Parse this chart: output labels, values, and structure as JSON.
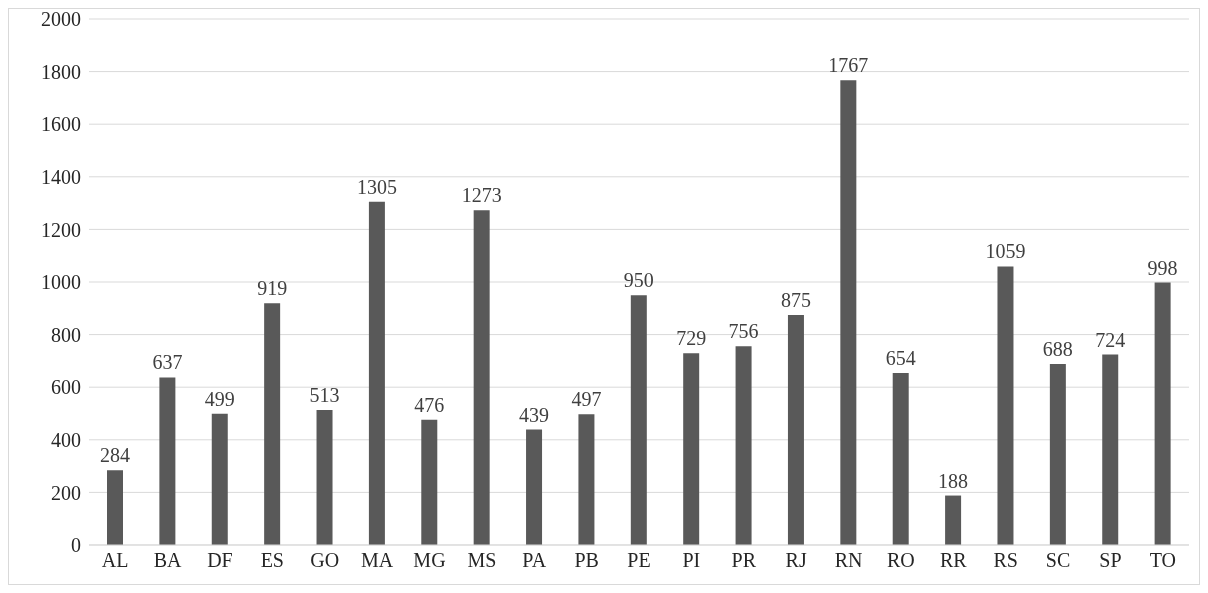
{
  "chart_data": {
    "type": "bar",
    "categories": [
      "AL",
      "BA",
      "DF",
      "ES",
      "GO",
      "MA",
      "MG",
      "MS",
      "PA",
      "PB",
      "PE",
      "PI",
      "PR",
      "RJ",
      "RN",
      "RO",
      "RR",
      "RS",
      "SC",
      "SP",
      "TO"
    ],
    "values": [
      284,
      637,
      499,
      919,
      513,
      1305,
      476,
      1273,
      439,
      497,
      950,
      729,
      756,
      875,
      1767,
      654,
      188,
      1059,
      688,
      724,
      998
    ],
    "color": "#595959",
    "ylim": [
      0,
      2000
    ],
    "yticks": [
      0,
      200,
      400,
      600,
      800,
      1000,
      1200,
      1400,
      1600,
      1800,
      2000
    ],
    "grid": "y",
    "data_labels": true
  }
}
